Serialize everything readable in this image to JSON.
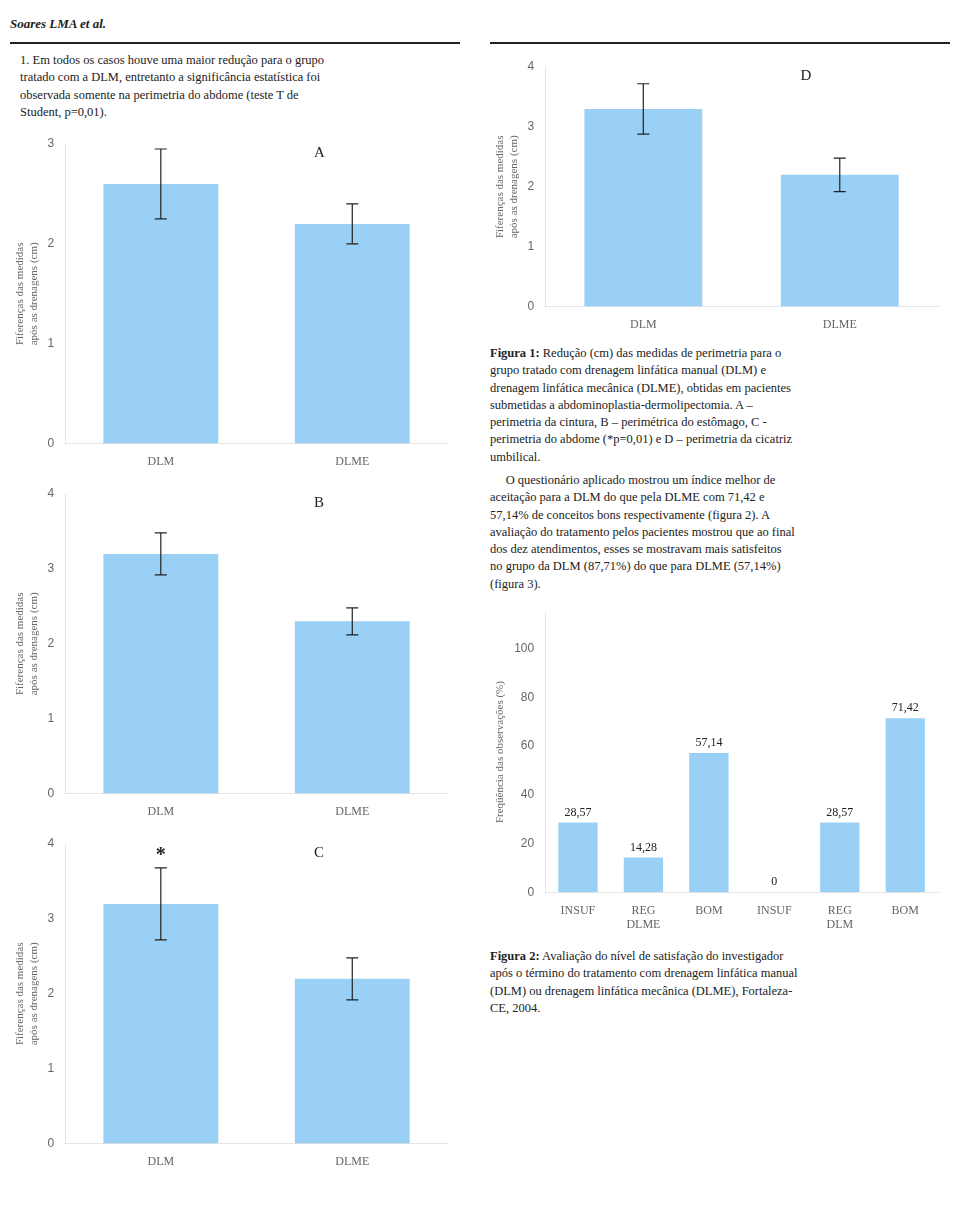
{
  "header": "Soares LMA et al.",
  "paragraphs": [
    "1. Em todos os casos houve uma maior redução para o grupo\ntratado com a DLM, entretanto a significância estatística foi\nobservada somente na perimetria do abdome (teste T de\nStudent, p=0,01).",
    "     O questionário aplicado mostrou um índice melhor de\naceitação para a DLM do que pela DLME com 71,42 e\n57,14% de conceitos bons respectivamente (figura 2). A\navaliação do tratamento pelos pacientes mostrou que ao final\ndos dez atendimentos, esses se mostravam mais satisfeitos\nno grupo da DLM (87,71%) do que para DLME (57,14%)\n(figura 3)."
  ],
  "captions": [
    "Figura 1: Redução (cm) das medidas de perimetria para o\ngrupo tratado com drenagem linfática manual (DLM) e\ndrenagem linfática mecânica (DLME), obtidas em pacientes\nsubmetidas a abdominoplastia-dermolipectomia. A –\nperimetria da cintura, B – perimétrica do estômago, C -\nperimetria do abdome (*p=0,01) e D – perimetria da cicatriz\numbilical.",
    "Figura 2: Avaliação do nível de satisfação do investigador\napós o término do tratamento com drenagem linfática manual\n(DLM) ou drenagem linfática mecânica (DLME), Fortaleza-\nCE, 2004."
  ],
  "chart_data": [
    {
      "type": "bar",
      "categories": [
        "DLM",
        "DLME"
      ],
      "values": [
        2.6,
        2.2
      ],
      "errors": [
        0.35,
        0.2
      ],
      "ylabel": "Fiferenças das medidas\napós as drenagens (cm)",
      "ylim": [
        0,
        3
      ],
      "yticks": [
        0,
        1,
        2,
        3
      ],
      "grid": false,
      "annotations": [
        {
          "text": "A"
        }
      ]
    },
    {
      "type": "bar",
      "categories": [
        "DLM",
        "DLME"
      ],
      "values": [
        3.2,
        2.3
      ],
      "errors": [
        0.28,
        0.18
      ],
      "ylabel": "Fiferenças das medidas\napós as drenagens (cm)",
      "ylim": [
        0,
        4
      ],
      "yticks": [
        0,
        1,
        2,
        3,
        4
      ],
      "grid": false,
      "annotations": [
        {
          "text": "B"
        }
      ]
    },
    {
      "type": "bar",
      "categories": [
        "DLM",
        "DLME"
      ],
      "values": [
        3.2,
        2.2
      ],
      "errors": [
        0.48,
        0.28
      ],
      "ylabel": "Fiferenças das medidas\napós as drenagens (cm)",
      "ylim": [
        0,
        4
      ],
      "yticks": [
        0,
        1,
        2,
        3,
        4
      ],
      "grid": false,
      "annotations": [
        {
          "text": "C"
        },
        {
          "text": "*",
          "x": "DLM"
        }
      ]
    },
    {
      "type": "bar",
      "categories": [
        "DLM",
        "DLME"
      ],
      "values": [
        3.3,
        2.2
      ],
      "errors": [
        0.42,
        0.28
      ],
      "ylabel": "Fiferenças das medidas\napós as drenagens (cm)",
      "ylim": [
        0,
        4
      ],
      "yticks": [
        0,
        1,
        2,
        3,
        4
      ],
      "grid": false,
      "annotations": [
        {
          "text": "D"
        }
      ]
    },
    {
      "type": "bar",
      "categories": [
        "INSUF",
        "REG",
        "BOM",
        "INSUF",
        "REG",
        "BOM"
      ],
      "values": [
        28.57,
        14.28,
        57.14,
        0,
        28.57,
        71.42
      ],
      "value_labels": [
        "28,57",
        "14,28",
        "57,14",
        "0",
        "28,57",
        "71,42"
      ],
      "data_labels": true,
      "group_labels": [
        "DLME",
        "DLM"
      ],
      "ylabel": "Freqüência das observações (%)",
      "ylim": [
        0,
        115
      ],
      "yticks": [
        0,
        20,
        40,
        60,
        80,
        100
      ],
      "grid": false
    }
  ]
}
